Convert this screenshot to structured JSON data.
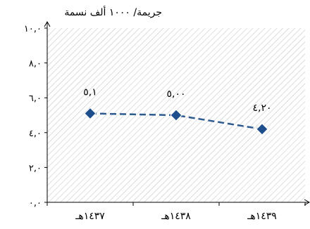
{
  "chart_data": {
    "type": "line",
    "title": "",
    "ylabel": "جريمة/ ١٠٠٠ ألف نسمة",
    "xlabel": "",
    "categories": [
      "١٤٣٧هـ",
      "١٤٣٨هـ",
      "١٤٣٩هـ"
    ],
    "series": [
      {
        "values": [
          5.1,
          5.0,
          4.2
        ]
      }
    ],
    "data_labels": [
      "٥,١",
      "٥,٠٠",
      "٤,٢٠"
    ],
    "y_ticks": [
      0,
      2,
      4,
      6,
      8,
      10
    ],
    "y_tick_labels": [
      "٠,٠",
      "٢,٠",
      "٤,٠",
      "٦,٠",
      "٨,٠",
      "١٠,٠"
    ],
    "ylim": [
      0,
      10
    ],
    "grid": false,
    "legend": "none",
    "line_style": "dashed",
    "marker": "diamond",
    "colors": {
      "series": "#2E5B8F",
      "marker": "#1F4E8C",
      "axis": "#000000",
      "hatch": "#C8C8C8"
    }
  }
}
